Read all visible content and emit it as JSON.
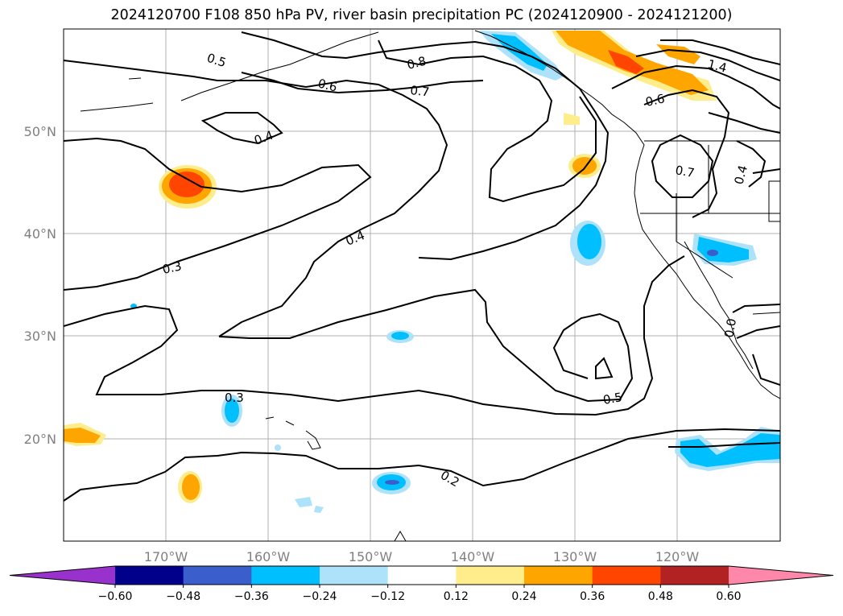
{
  "title": "2024120700 F108 850 hPa PV, river basin precipitation PC (2024120900 - 2024121200)",
  "map": {
    "lat_labels": [
      "50°N",
      "40°N",
      "30°N",
      "20°N"
    ],
    "lon_labels": [
      "170°W",
      "160°W",
      "150°W",
      "140°W",
      "130°W",
      "120°W"
    ],
    "contour_labels": [
      "0.5",
      "0.6",
      "0.8",
      "0.7",
      "0.4",
      "0.6",
      "1.4",
      "0.7",
      "0.4",
      "0.4",
      "0.3",
      "0.3",
      "0.5",
      "0.2",
      "0.0"
    ]
  },
  "colorbar": {
    "colors": [
      "#9932CC",
      "#00008B",
      "#3A5FCD",
      "#00BFFF",
      "#ADE2FA",
      "#FFFFFF",
      "#FFEC8B",
      "#FFA500",
      "#FF4500",
      "#B22222",
      "#FF88AA"
    ],
    "tick_labels": [
      "−0.60",
      "−0.48",
      "−0.36",
      "−0.24",
      "−0.12",
      "0.12",
      "0.24",
      "0.36",
      "0.48",
      "0.60"
    ]
  }
}
